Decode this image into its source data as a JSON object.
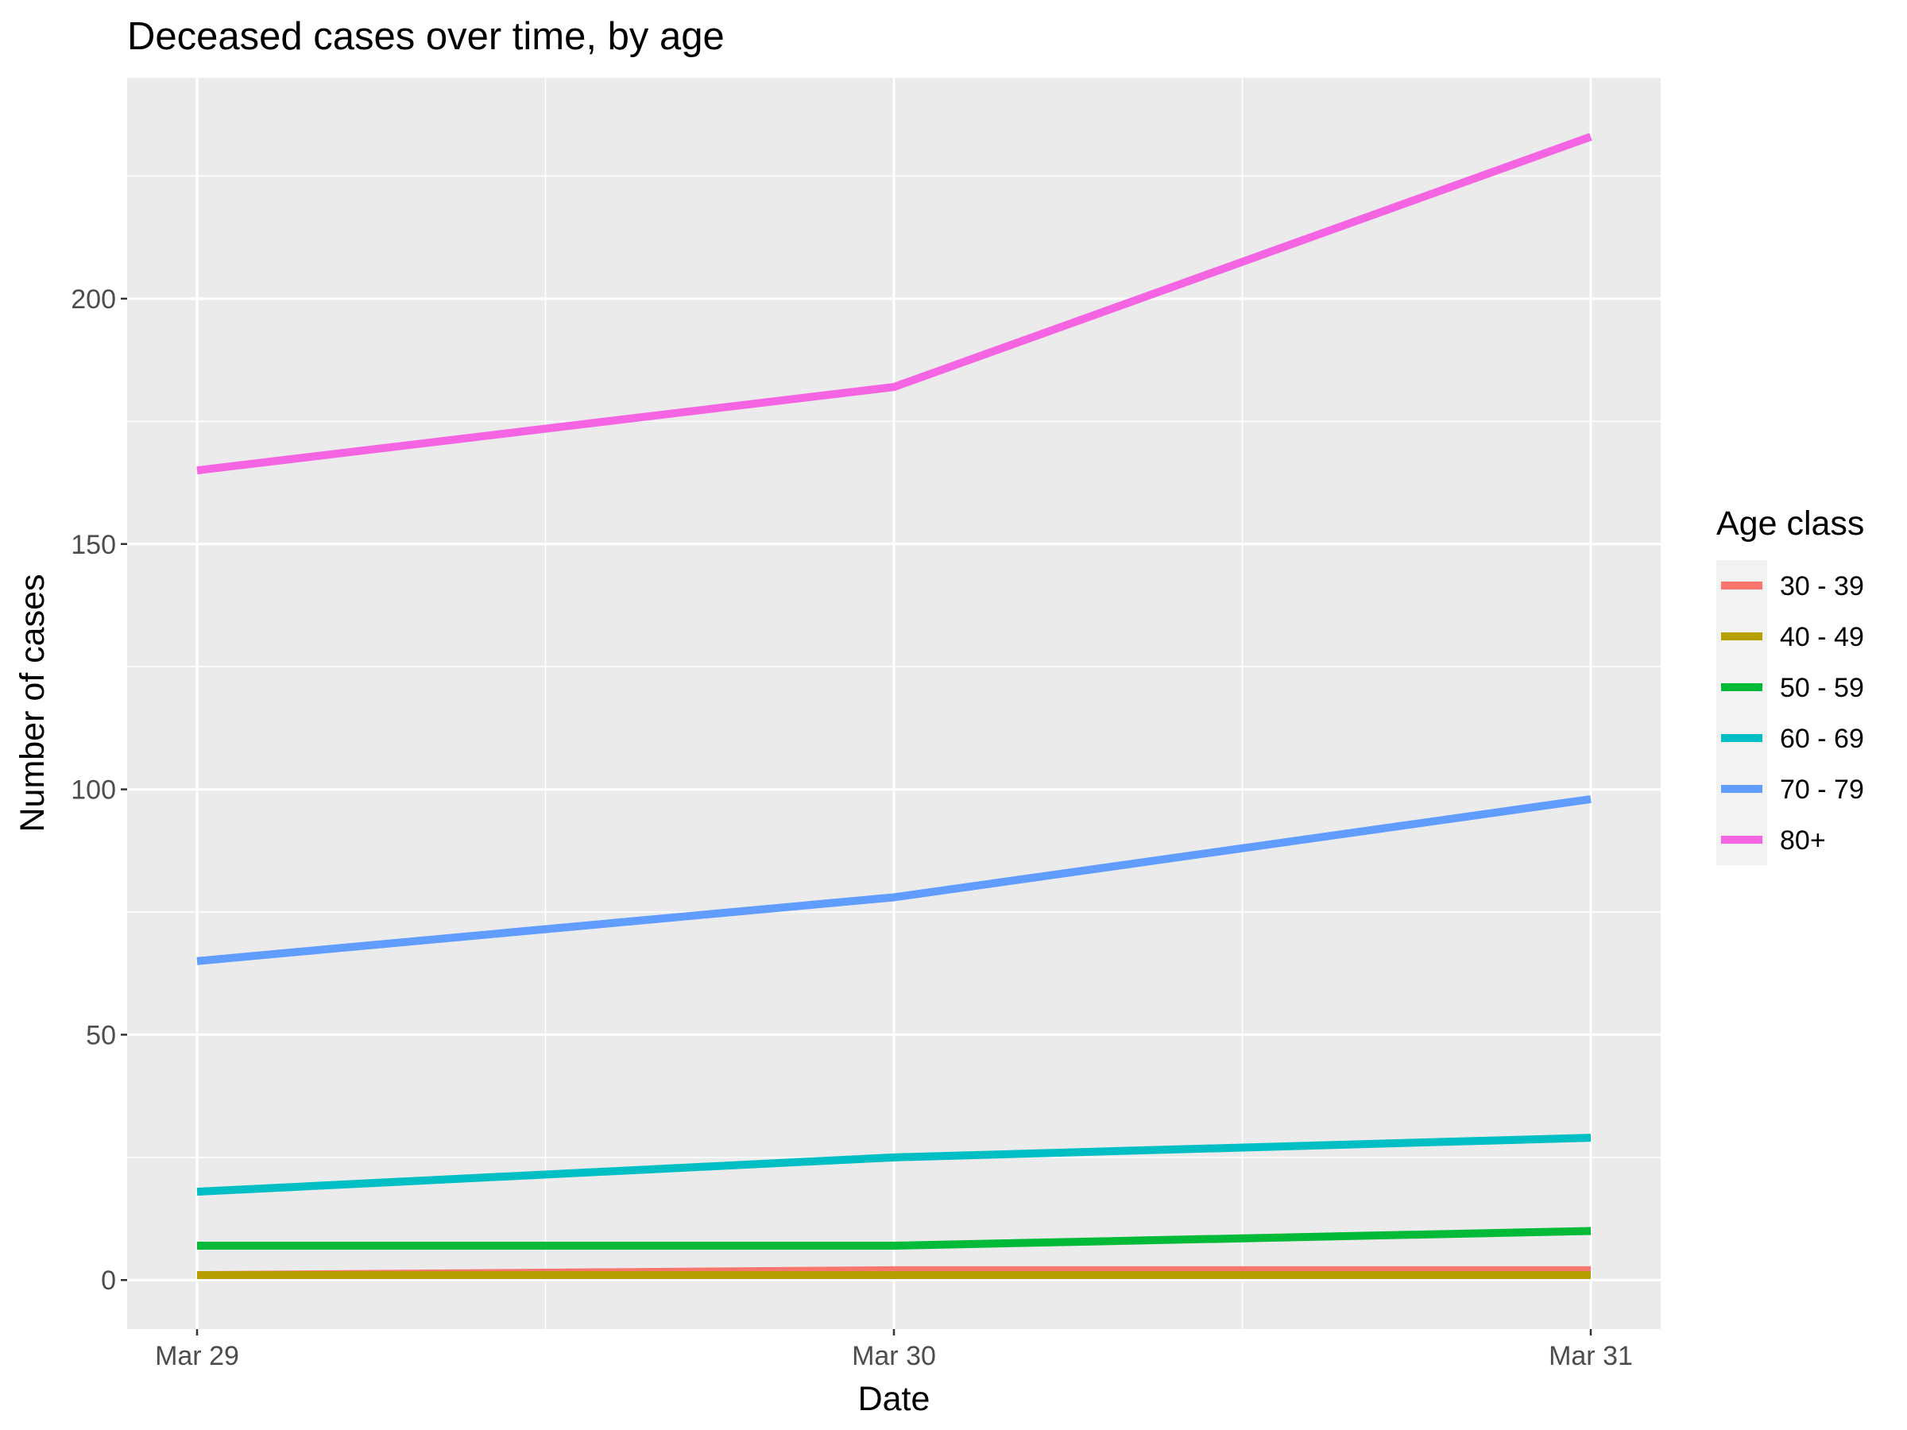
{
  "chart_data": {
    "type": "line",
    "title": "Deceased cases over time, by age",
    "xlabel": "Date",
    "ylabel": "Number of cases",
    "x": [
      "Mar 29",
      "Mar 30",
      "Mar 31"
    ],
    "ylim": [
      -10,
      245
    ],
    "yticks": [
      0,
      50,
      100,
      150,
      200
    ],
    "grid": true,
    "legend": {
      "title": "Age class",
      "position": "right"
    },
    "series": [
      {
        "name": "30 - 39",
        "color": "#F8766D",
        "values": [
          1,
          2,
          2
        ]
      },
      {
        "name": "40 - 49",
        "color": "#B79F00",
        "values": [
          1,
          1,
          1
        ]
      },
      {
        "name": "50 - 59",
        "color": "#00BA38",
        "values": [
          7,
          7,
          10
        ]
      },
      {
        "name": "60 - 69",
        "color": "#00BFC4",
        "values": [
          18,
          25,
          29
        ]
      },
      {
        "name": "70 - 79",
        "color": "#619CFF",
        "values": [
          65,
          78,
          98
        ]
      },
      {
        "name": "80+",
        "color": "#F564E3",
        "values": [
          165,
          182,
          233
        ]
      }
    ]
  }
}
